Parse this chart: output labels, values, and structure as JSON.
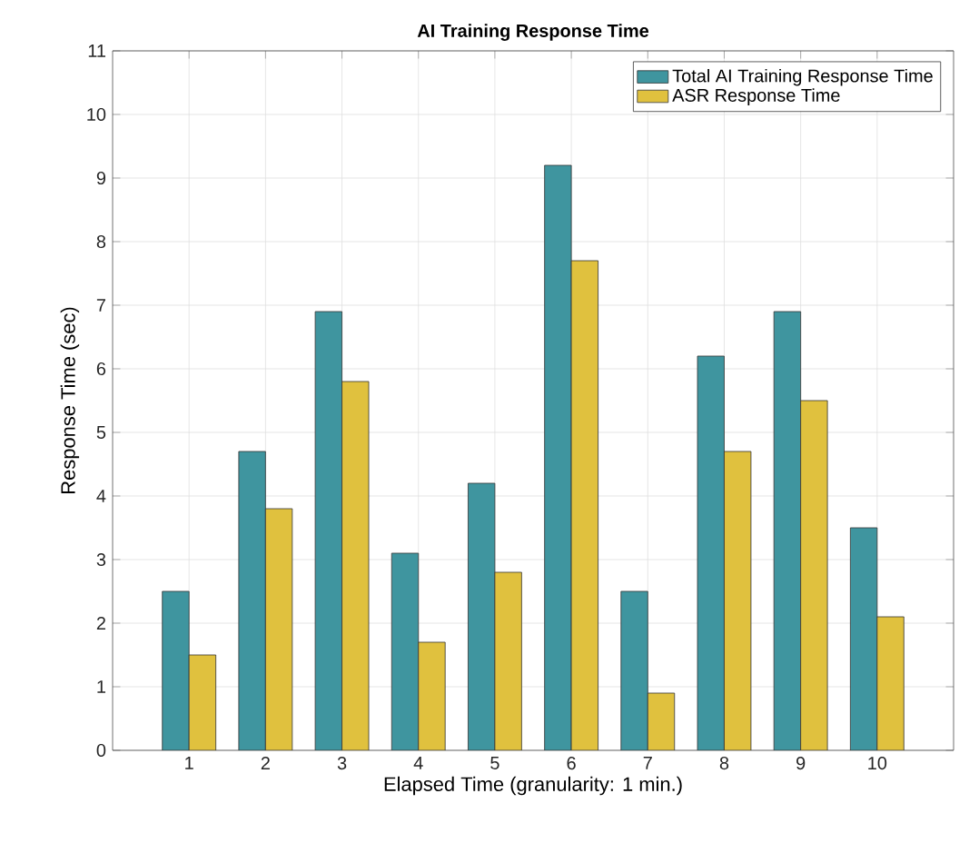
{
  "chart_data": {
    "type": "bar",
    "title": "AI Training Response Time",
    "xlabel": "Elapsed Time (granularity: 1 min.)",
    "ylabel": "Response Time (sec)",
    "x": [
      1,
      2,
      3,
      4,
      5,
      6,
      7,
      8,
      9,
      10
    ],
    "series": [
      {
        "name": "Total AI Training Response Time",
        "color": "#3f959f",
        "values": [
          2.5,
          4.7,
          6.9,
          3.1,
          4.2,
          9.2,
          2.5,
          6.2,
          6.9,
          3.5
        ]
      },
      {
        "name": "ASR Response Time",
        "color": "#e0c13e",
        "values": [
          1.5,
          3.8,
          5.8,
          1.7,
          2.8,
          7.7,
          0.9,
          4.7,
          5.5,
          2.1
        ]
      }
    ],
    "xlim": [
      0,
      11
    ],
    "xticks": [
      1,
      2,
      3,
      4,
      5,
      6,
      7,
      8,
      9,
      10
    ],
    "ylim": [
      0,
      11
    ],
    "yticks": [
      0,
      1,
      2,
      3,
      4,
      5,
      6,
      7,
      8,
      9,
      10,
      11
    ],
    "grid": true,
    "legend": "top right"
  }
}
